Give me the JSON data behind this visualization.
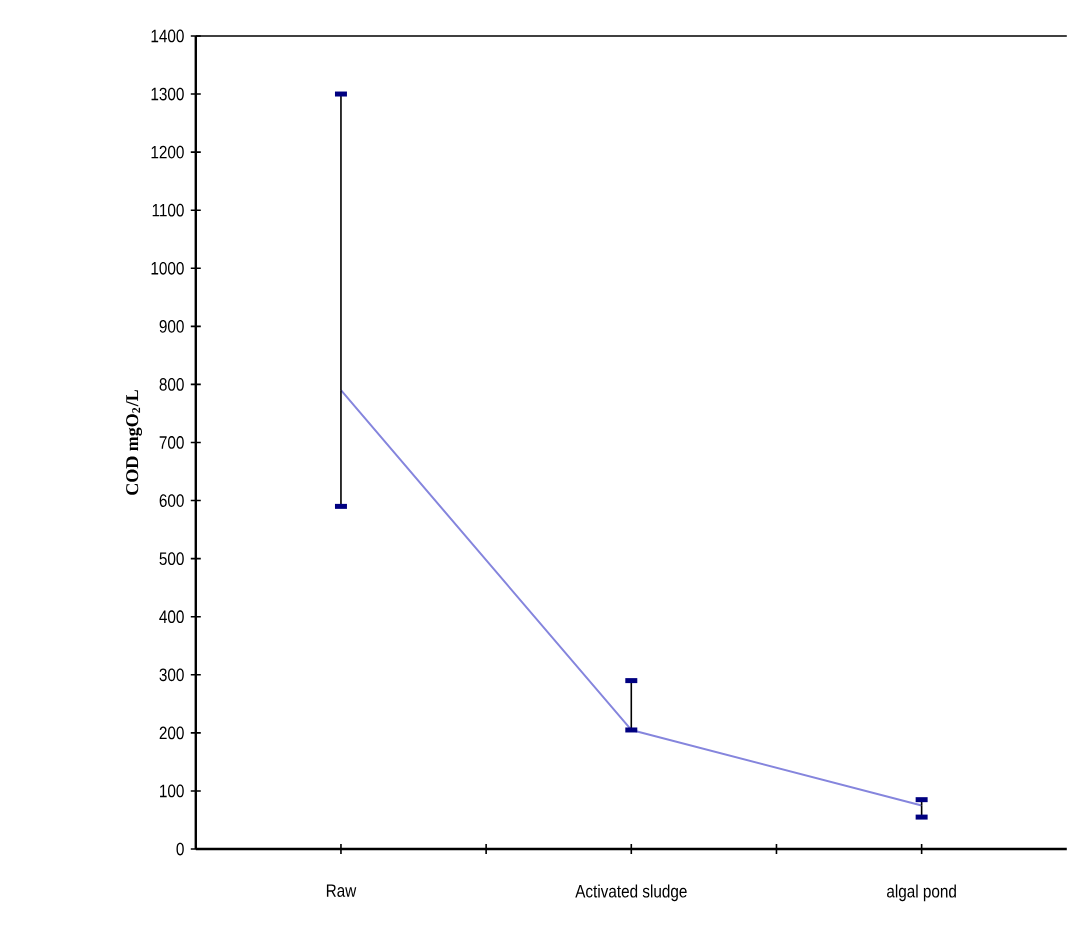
{
  "chart_data": {
    "type": "line",
    "ylabel": "COD mgO$_{2}$/L",
    "categories": [
      "Raw",
      "Activated sludge",
      "algal pond"
    ],
    "series": [
      {
        "color": "#8585dd",
        "values": [
          790,
          205,
          75
        ],
        "errors": [
          [
            590,
            1300
          ],
          [
            205,
            290
          ],
          [
            55,
            85
          ]
        ]
      }
    ],
    "ylim": [
      0,
      1400
    ],
    "yticks": [
      0,
      100,
      200,
      300,
      400,
      500,
      600,
      700,
      800,
      900,
      1000,
      1100,
      1200,
      1300,
      1400
    ],
    "grid": false
  }
}
